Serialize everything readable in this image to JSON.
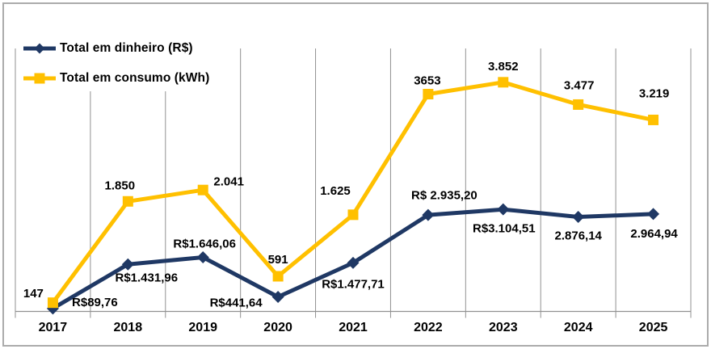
{
  "colors": {
    "series_money": "#1F3864",
    "series_kwh": "#FFC000",
    "gridline": "#919191",
    "axis": "#919191",
    "text": "#000000",
    "background": "#FFFFFF",
    "border": "#ABABAB"
  },
  "chart_data": {
    "type": "line",
    "title": "",
    "xlabel": "",
    "ylabel": "",
    "legend_position": "top-left",
    "grid": "vertical-only",
    "y_axis_labels_visible": false,
    "categories": [
      "2017",
      "2018",
      "2019",
      "2020",
      "2021",
      "2022",
      "2023",
      "2024",
      "2025"
    ],
    "series": [
      {
        "name": "Total em dinheiro (R$)",
        "color": "#1F3864",
        "marker": "diamond",
        "ylim": [
          0,
          8000
        ],
        "values": [
          89.76,
          1431.96,
          1646.06,
          441.64,
          1477.71,
          2935.2,
          3104.51,
          2876.14,
          2964.94
        ],
        "labels": [
          "R$89,76",
          "R$1.431,96",
          "R$1.646,06",
          "R$441,64",
          "R$1.477,71",
          "R$ 2.935,20",
          "R$3.104,51",
          "2.876,14",
          "2.964,94"
        ]
      },
      {
        "name": "Total em consumo (kWh)",
        "color": "#FFC000",
        "marker": "square",
        "ylim": [
          0,
          4420
        ],
        "values": [
          147,
          1850,
          2041,
          591,
          1625,
          3653,
          3852,
          3477,
          3219
        ],
        "labels": [
          "147",
          "1.850",
          "2.041",
          "591",
          "1.625",
          "3653",
          "3.852",
          "3.477",
          "3.219"
        ]
      }
    ]
  }
}
